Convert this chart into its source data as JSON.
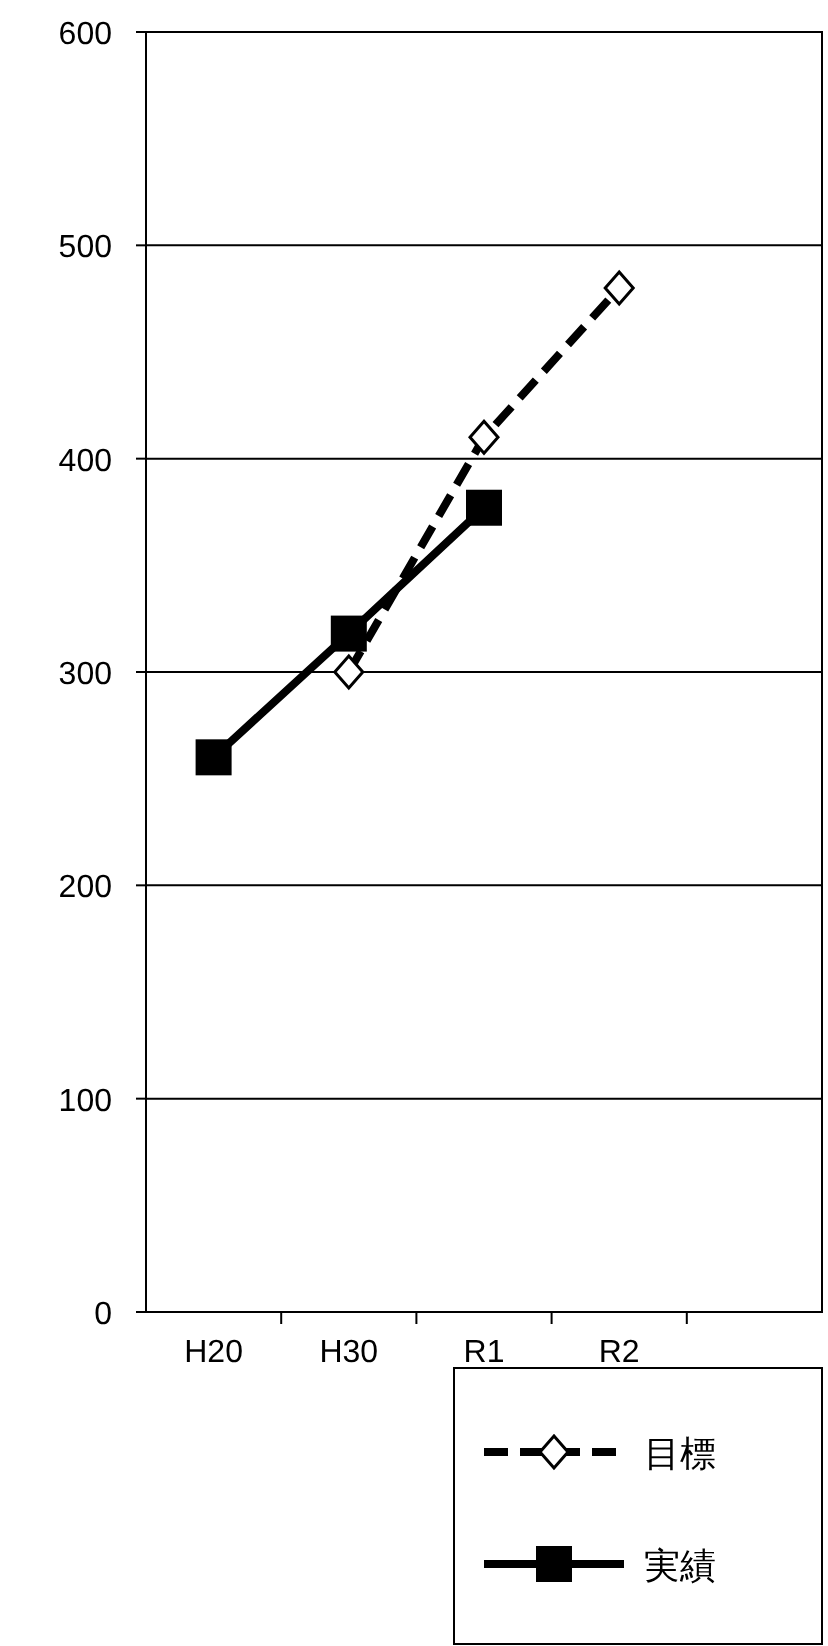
{
  "chart_data": {
    "type": "line",
    "categories": [
      "H20",
      "H30",
      "R1",
      "R2",
      null
    ],
    "series": [
      {
        "name": "目標",
        "color": "#000000",
        "values": [
          null,
          300,
          410,
          480,
          null
        ],
        "line_style": "dashed",
        "marker": "diamond"
      },
      {
        "name": "実績",
        "color": "#000000",
        "values": [
          260,
          318,
          377,
          null,
          null
        ],
        "line_style": "solid",
        "marker": "square"
      }
    ],
    "ylim": [
      0,
      600
    ],
    "yticks": [
      0,
      100,
      200,
      300,
      400,
      500,
      600
    ],
    "grid": "y",
    "legend": "bottom right"
  }
}
